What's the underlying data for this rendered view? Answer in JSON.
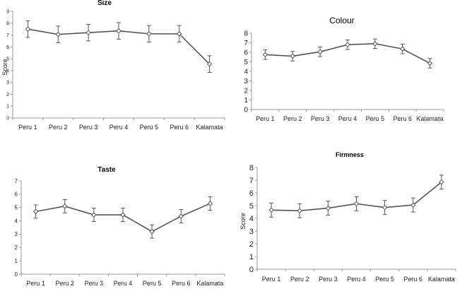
{
  "chart_data": [
    {
      "type": "line",
      "title": "Size",
      "xlabel": "",
      "ylabel": "Score",
      "ylim": [
        0,
        9
      ],
      "yticks": [
        0,
        1,
        2,
        3,
        4,
        5,
        6,
        7,
        8,
        9
      ],
      "categories": [
        "Peru 1",
        "Peru 2",
        "Peru 3",
        "Peru 4",
        "Peru 5",
        "Peru 6",
        "Kalamata"
      ],
      "values": [
        7.5,
        7.05,
        7.2,
        7.35,
        7.1,
        7.1,
        4.55
      ],
      "error": [
        0.7,
        0.7,
        0.7,
        0.7,
        0.7,
        0.7,
        0.7
      ],
      "grid": false
    },
    {
      "type": "line",
      "title": "Colour",
      "xlabel": "",
      "ylabel": "",
      "ylim": [
        0,
        8
      ],
      "yticks": [
        0,
        1,
        2,
        3,
        4,
        5,
        6,
        7,
        8
      ],
      "categories": [
        "Peru 1",
        "Peru 2",
        "Peru 3",
        "Peru 4",
        "Peru 5",
        "Peru 6",
        "Kalamata"
      ],
      "values": [
        5.75,
        5.6,
        6.05,
        6.8,
        6.9,
        6.35,
        4.85
      ],
      "error": [
        0.5,
        0.5,
        0.5,
        0.5,
        0.5,
        0.5,
        0.5
      ],
      "grid": false
    },
    {
      "type": "line",
      "title": "Taste",
      "xlabel": "",
      "ylabel": "",
      "ylim": [
        0,
        7
      ],
      "yticks": [
        0,
        1,
        2,
        3,
        4,
        5,
        6,
        7
      ],
      "categories": [
        "Peru 1",
        "Peru 2",
        "Peru 3",
        "Peru 4",
        "Peru 5",
        "Peru 6",
        "Kalamata"
      ],
      "values": [
        4.7,
        5.1,
        4.45,
        4.45,
        3.2,
        4.35,
        5.3
      ],
      "error": [
        0.5,
        0.5,
        0.5,
        0.5,
        0.5,
        0.5,
        0.5
      ],
      "grid": false
    },
    {
      "type": "line",
      "title": "Firmness",
      "xlabel": "",
      "ylabel": "Score",
      "ylim": [
        0,
        8
      ],
      "yticks": [
        0,
        1,
        2,
        3,
        4,
        5,
        6,
        7,
        8
      ],
      "categories": [
        "Peru 1",
        "Peru 2",
        "Peru 3",
        "Peru 4",
        "Peru 5",
        "Peru 6",
        "Kalamata"
      ],
      "values": [
        4.65,
        4.6,
        4.8,
        5.15,
        4.85,
        5.05,
        6.85
      ],
      "error": [
        0.55,
        0.55,
        0.55,
        0.55,
        0.55,
        0.55,
        0.55
      ],
      "grid": false
    }
  ],
  "colors": {
    "line": "#555555",
    "axis": "#999999",
    "marker_fill": "#ffffff"
  }
}
